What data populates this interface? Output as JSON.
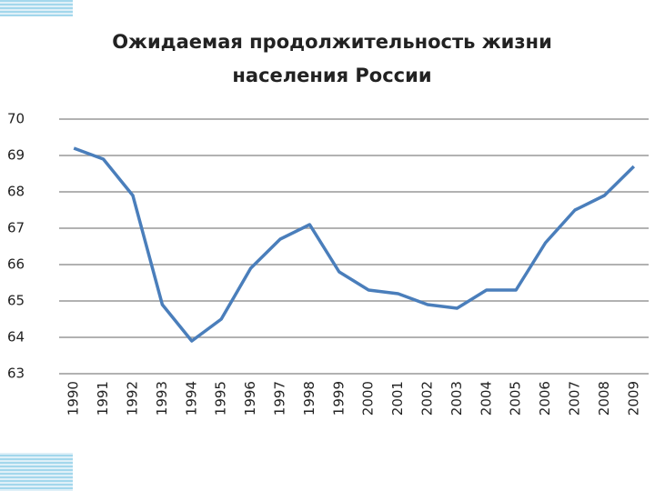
{
  "chart_data": {
    "type": "line",
    "title": "Ожидаемая продолжительность жизни",
    "subtitle": "населения России",
    "categories": [
      "1990",
      "1991",
      "1992",
      "1993",
      "1994",
      "1995",
      "1996",
      "1997",
      "1998",
      "1999",
      "2000",
      "2001",
      "2002",
      "2003",
      "2004",
      "2005",
      "2006",
      "2007",
      "2008",
      "2009"
    ],
    "values": [
      69.2,
      68.9,
      67.9,
      64.9,
      63.9,
      64.5,
      65.9,
      66.7,
      67.1,
      65.8,
      65.3,
      65.2,
      64.9,
      64.8,
      65.3,
      65.3,
      66.6,
      67.5,
      67.9,
      68.7
    ],
    "color": "#4a7ebb",
    "ylim": [
      63,
      70
    ],
    "yticks": [
      63,
      64,
      65,
      66,
      67,
      68,
      69,
      70
    ],
    "grid": true
  }
}
